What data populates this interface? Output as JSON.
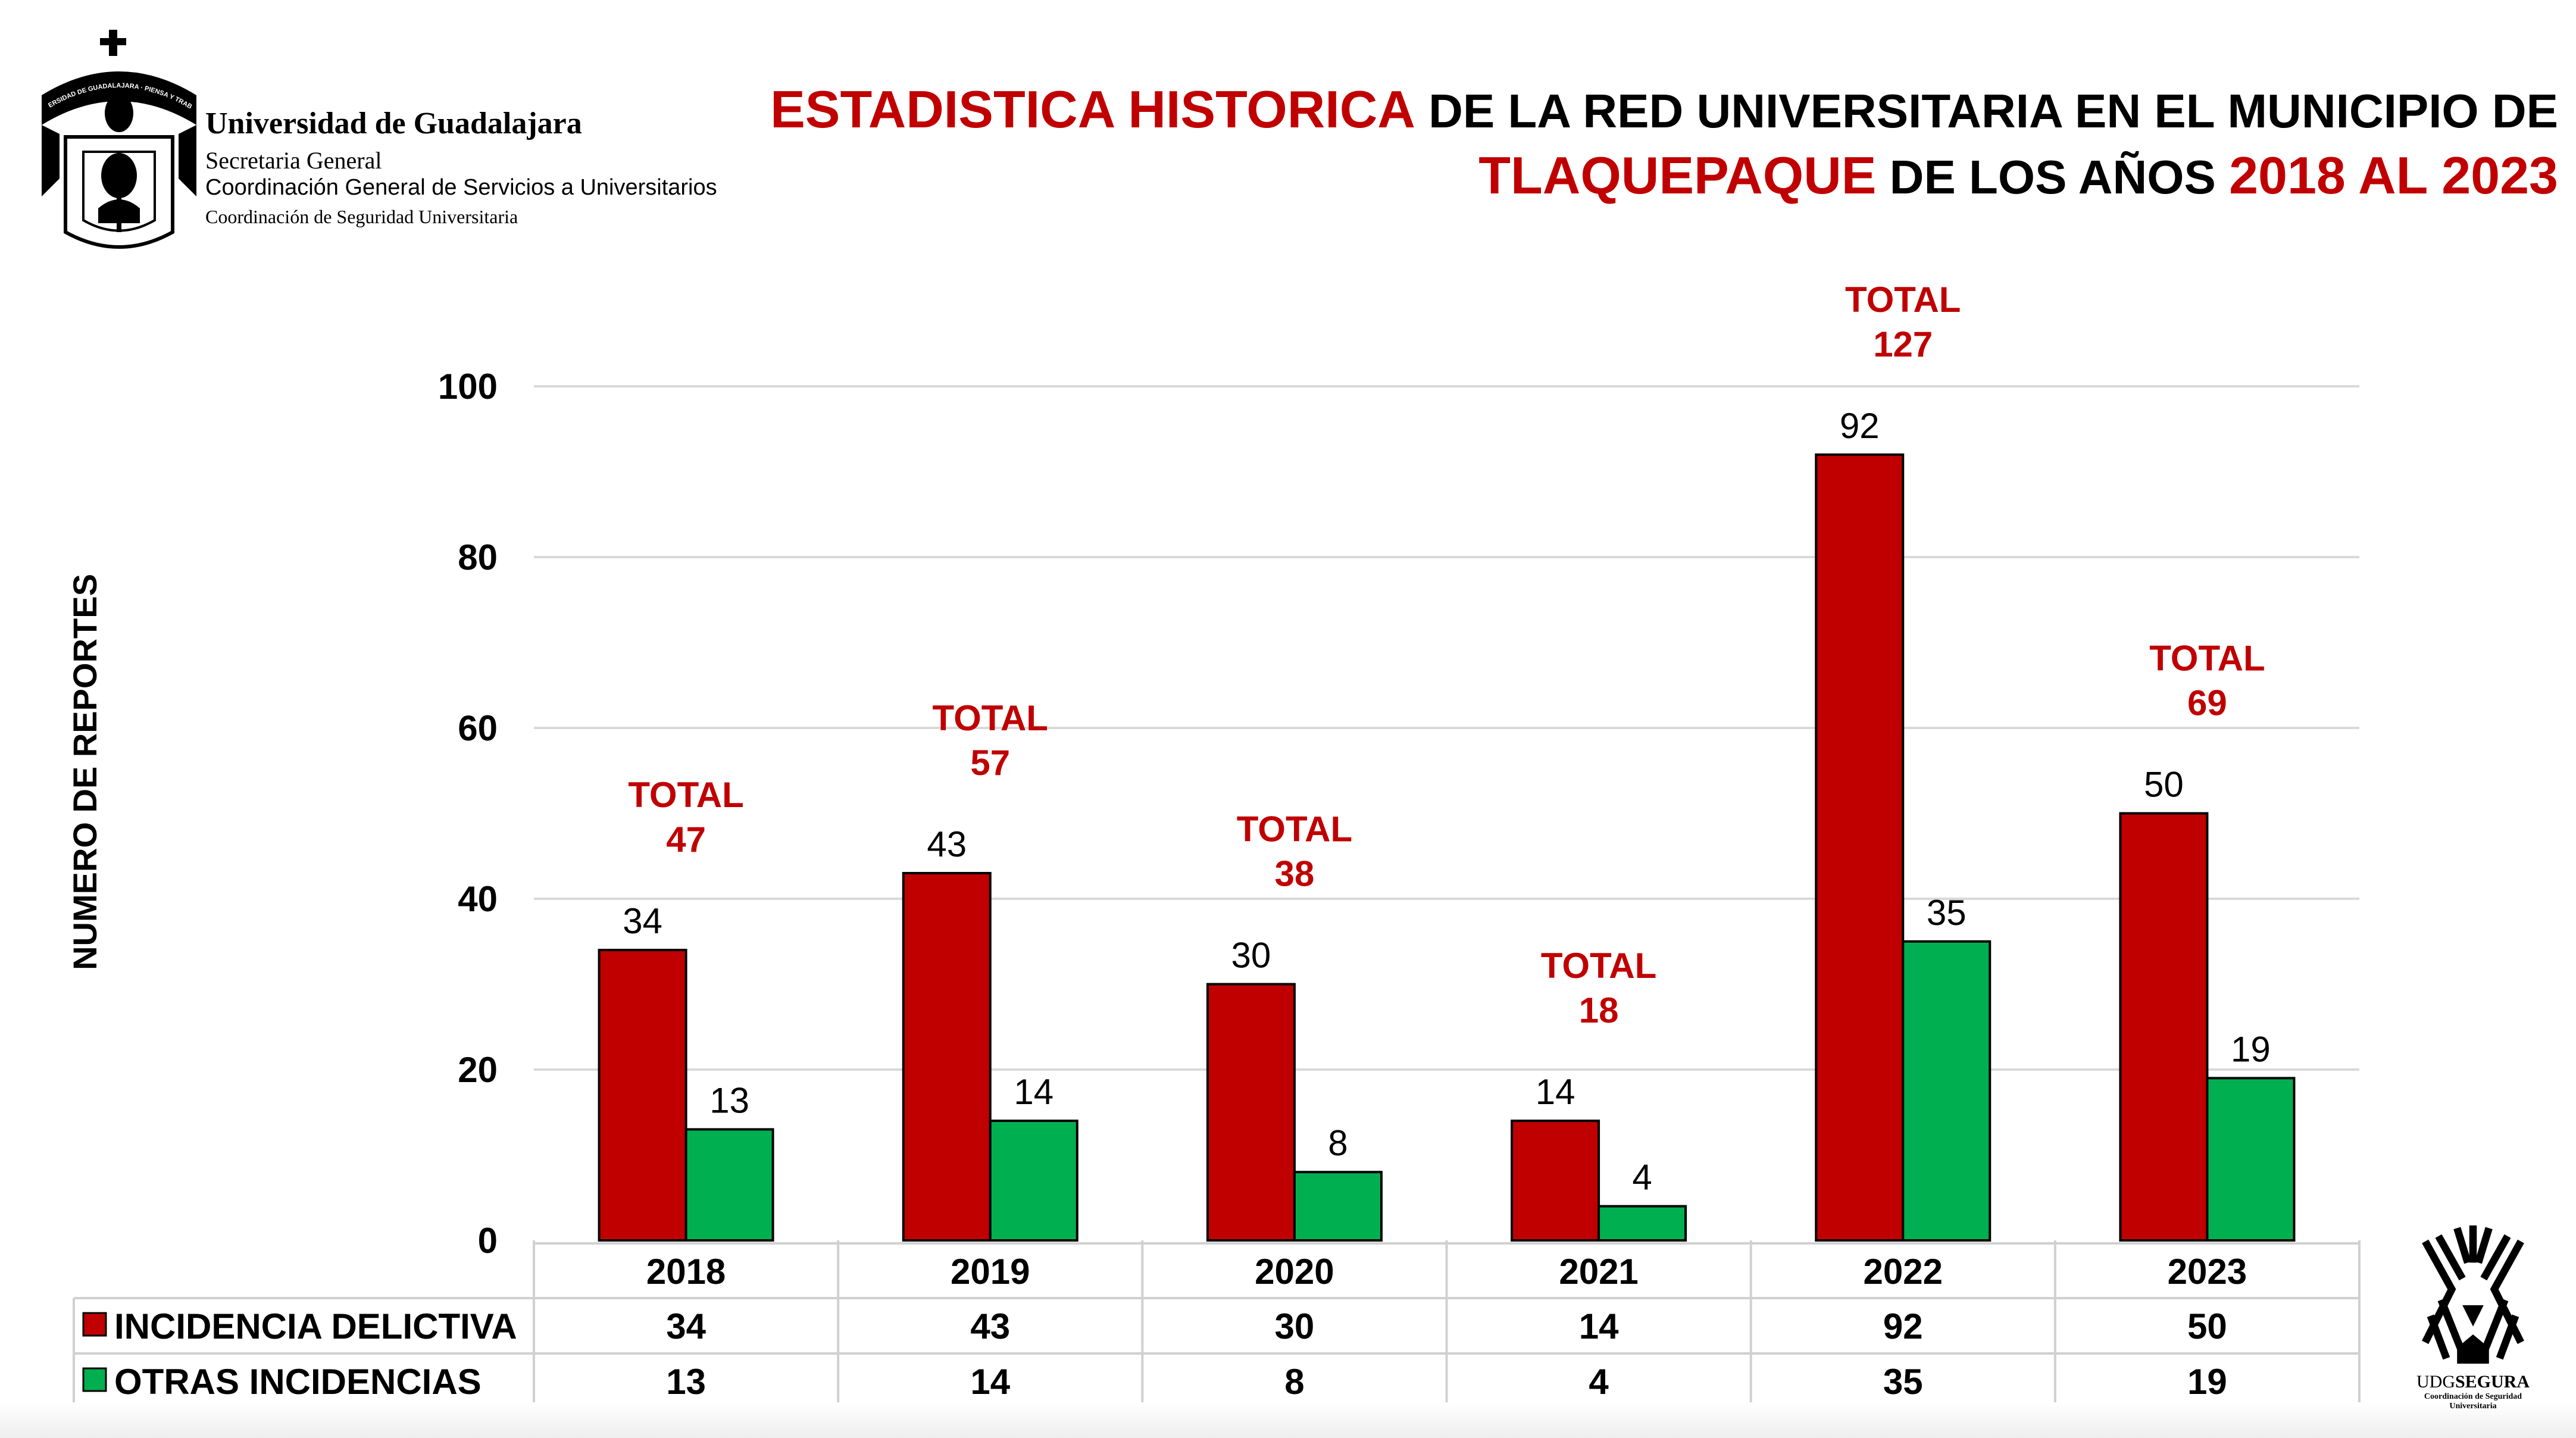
{
  "header": {
    "org_name": "Universidad de Guadalajara",
    "secretaria": "Secretaria General",
    "coordinacion_general": "Coordinación General de Servicios a Universitarios",
    "coordinacion_seguridad": "Coordinación de Seguridad Universitaria",
    "crest_text": "UNIVERSIDAD DE GUADALAJARA · PIENSA Y TRABAJA"
  },
  "title": {
    "part1": "ESTADISTICA HISTORICA",
    "part2": " DE LA RED UNIVERSITARIA EN EL MUNICIPIO DE",
    "part3": "TLAQUEPAQUE",
    "part4": " DE LOS AÑOS ",
    "part5": "2018 AL 2023"
  },
  "logo": {
    "name_light": "UDG",
    "name_bold": "SEGURA",
    "subtitle1": "Coordinación de Seguridad",
    "subtitle2": "Universitaria"
  },
  "colors": {
    "red": "#C00000",
    "green": "#00B050"
  },
  "chart_data": {
    "type": "bar",
    "ylabel": "NUMERO DE REPORTES",
    "ylim": [
      0,
      100
    ],
    "yticks": [
      0,
      20,
      40,
      60,
      80,
      100
    ],
    "grid": true,
    "categories": [
      "2018",
      "2019",
      "2020",
      "2021",
      "2022",
      "2023"
    ],
    "series": [
      {
        "name": "INCIDENCIA DELICTIVA",
        "color": "#C00000",
        "values": [
          34,
          43,
          30,
          14,
          92,
          50
        ]
      },
      {
        "name": "OTRAS INCIDENCIAS",
        "color": "#00B050",
        "values": [
          13,
          14,
          8,
          4,
          35,
          19
        ]
      }
    ],
    "totals_label": "TOTAL",
    "totals": [
      47,
      57,
      38,
      18,
      127,
      69
    ],
    "legend": "bottom data table"
  }
}
